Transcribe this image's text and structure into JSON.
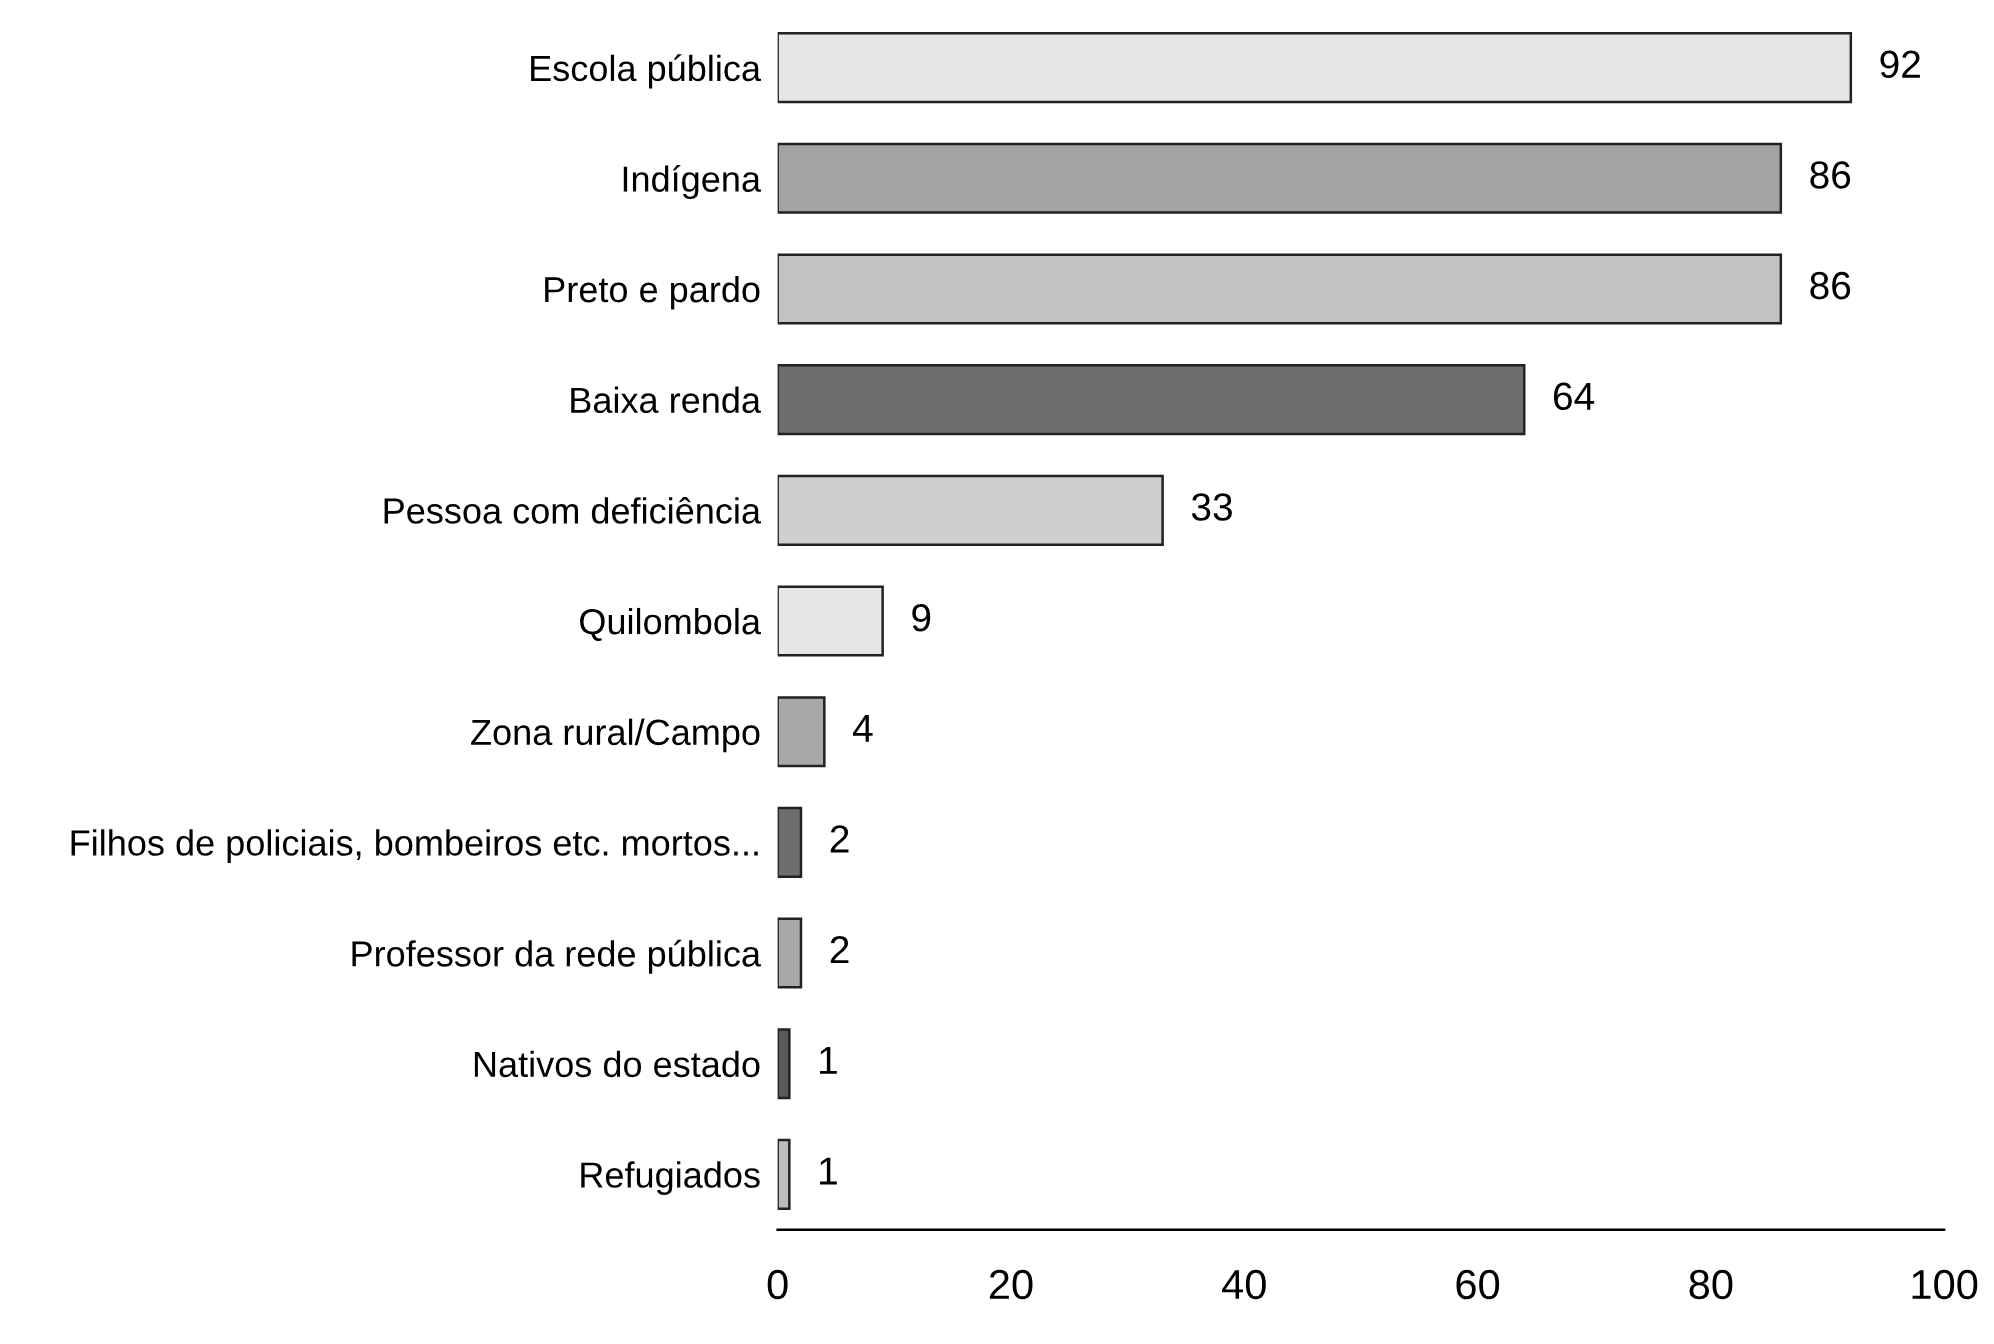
{
  "chart_data": {
    "type": "bar",
    "orientation": "horizontal",
    "categories": [
      "Escola pública",
      "Indígena",
      "Preto e pardo",
      "Baixa renda",
      "Pessoa com deficiência",
      "Quilombola",
      "Zona rural/Campo",
      "Filhos de policiais, bombeiros etc. mortos...",
      "Professor da rede pública",
      "Nativos do estado",
      "Refugiados"
    ],
    "values": [
      92,
      86,
      86,
      64,
      33,
      9,
      4,
      2,
      2,
      1,
      1
    ],
    "colors": [
      "#e6e6e6",
      "#a3a3a3",
      "#c2c2c2",
      "#6e6e6e",
      "#cfcfcf",
      "#e6e6e6",
      "#a8a8a8",
      "#6e6e6e",
      "#a8a8a8",
      "#5a5a5a",
      "#bcbcbc"
    ],
    "xlim": [
      0,
      100
    ],
    "xticks": [
      0,
      20,
      40,
      60,
      80,
      100
    ],
    "data_labels": true,
    "grid": false,
    "legend": false
  }
}
